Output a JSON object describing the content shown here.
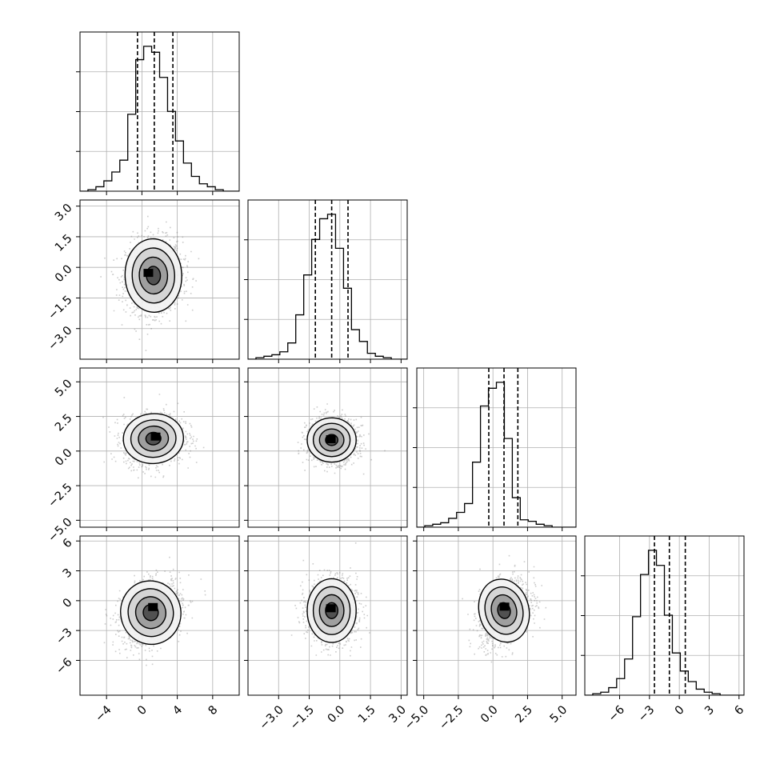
{
  "chart_data": {
    "type": "corner",
    "n_params": 4,
    "quantile_lines": "dashed",
    "grid": true,
    "params": [
      {
        "range": [
          -7,
          11
        ],
        "ticks": [
          -4,
          0,
          4,
          8
        ],
        "tick_labels": [
          "−4",
          "0",
          "4",
          "8"
        ],
        "quantiles": [
          -0.5,
          1.4,
          3.5
        ],
        "hist": [
          0,
          1,
          3,
          7,
          13,
          21,
          52,
          89,
          98,
          94,
          77,
          54,
          34,
          19,
          10,
          5,
          3,
          1,
          0,
          0
        ]
      },
      {
        "range": [
          -4.5,
          3.3
        ],
        "ticks": [
          -3.0,
          -1.5,
          0.0,
          1.5,
          3.0
        ],
        "tick_labels": [
          "−3.0",
          "−1.5",
          "0.0",
          "1.5",
          "3.0"
        ],
        "quantiles": [
          -1.2,
          -0.4,
          0.4
        ],
        "hist": [
          0,
          1,
          2,
          3,
          5,
          11,
          30,
          57,
          81,
          95,
          98,
          75,
          48,
          20,
          12,
          4,
          2,
          1,
          0,
          0
        ]
      },
      {
        "range": [
          -5.5,
          6.0
        ],
        "ticks": [
          -5.0,
          -2.5,
          0.0,
          2.5,
          5.0
        ],
        "tick_labels": [
          "−5.0",
          "−2.5",
          "0.0",
          "2.5",
          "5.0"
        ],
        "quantiles": [
          -0.3,
          0.8,
          1.8
        ],
        "hist": [
          0,
          1,
          2,
          3,
          6,
          10,
          16,
          44,
          82,
          94,
          98,
          60,
          20,
          5,
          4,
          2,
          1,
          0,
          0,
          0
        ]
      },
      {
        "range": [
          -9.5,
          6.5
        ],
        "ticks": [
          -6,
          -3,
          0,
          3,
          6
        ],
        "tick_labels": [
          "−6",
          "−3",
          "0",
          "3",
          "6"
        ],
        "quantiles": [
          -2.5,
          -1.0,
          0.6
        ],
        "hist": [
          0,
          1,
          2,
          5,
          11,
          24,
          52,
          80,
          96,
          86,
          53,
          28,
          16,
          9,
          4,
          2,
          1,
          0,
          0,
          0
        ]
      }
    ],
    "pairs": [
      {
        "row": 1,
        "col": 0,
        "center": [
          1.3,
          -0.4
        ],
        "spread": [
          1.6,
          0.9
        ],
        "corr": 0.05,
        "offset": [
          -0.3,
          0.1
        ]
      },
      {
        "row": 2,
        "col": 0,
        "center": [
          1.3,
          0.9
        ],
        "spread": [
          1.7,
          0.9
        ],
        "corr": 0.1,
        "offset": [
          0.2,
          0.1
        ]
      },
      {
        "row": 2,
        "col": 1,
        "center": [
          -0.4,
          0.8
        ],
        "spread": [
          0.6,
          0.8
        ],
        "corr": 0.0,
        "offset": [
          0.0,
          0.0
        ]
      },
      {
        "row": 3,
        "col": 0,
        "center": [
          1.0,
          -1.2
        ],
        "spread": [
          1.7,
          1.6
        ],
        "corr": 0.3,
        "offset": [
          0.2,
          0.3
        ]
      },
      {
        "row": 3,
        "col": 1,
        "center": [
          -0.4,
          -1.0
        ],
        "spread": [
          0.6,
          1.6
        ],
        "corr": 0.0,
        "offset": [
          0.0,
          0.1
        ]
      },
      {
        "row": 3,
        "col": 2,
        "center": [
          0.8,
          -1.0
        ],
        "spread": [
          0.9,
          1.6
        ],
        "corr": 0.35,
        "offset": [
          0.1,
          0.2
        ]
      }
    ]
  }
}
